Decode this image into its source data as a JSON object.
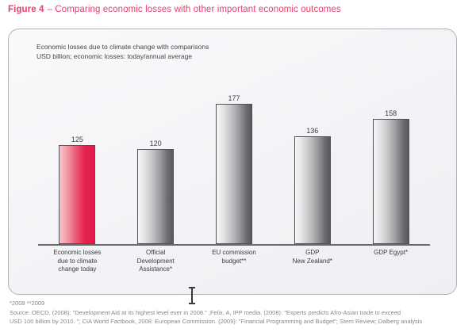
{
  "figure_title": {
    "label": "Figure 4",
    "rest": "– Comparing economic losses with other important economic outcomes"
  },
  "chart_data": {
    "type": "bar",
    "title": "Economic losses due to climate change with comparisons",
    "ylabel": "USD billion; economic losses: today/annual average",
    "categories": [
      "Economic losses\ndue to climate\nchange today",
      "Official\nDevelopment\nAssistance*",
      "EU commission\nbudget**",
      "GDP\nNew Zealand*",
      "GDP Egypt*"
    ],
    "values": [
      125,
      120,
      177,
      136,
      158
    ],
    "value_labels": [
      "125",
      "120",
      "177",
      "136",
      "158"
    ],
    "highlight_index": 0,
    "ylim": [
      0,
      200
    ],
    "grid": false,
    "legend": false,
    "colors": {
      "highlight_bar_light": "#f9c3ca",
      "highlight_bar_dark": "#e2184a",
      "default_bar_light": "#f6f6f7",
      "default_bar_dark": "#58585c",
      "axis": "#69696d",
      "title_accent": "#e8406c"
    }
  },
  "footnotes": {
    "note": "*2008 **2009",
    "source_line1": "Source: OECD. (2008): \"Development Aid at its highest level ever in 2008.\" ;Felix, A, IPP media. (2008): \"Experts predicts Afro-Asian trade to exceed",
    "source_line2": "USD 100 billion by 2010. \"; CIA World Factbook, 2008; European Commission. (2009): \"Financial Programming and Budget\"; Stern Review; Dalberg analysis"
  },
  "cursor": {
    "type": "i-beam"
  }
}
